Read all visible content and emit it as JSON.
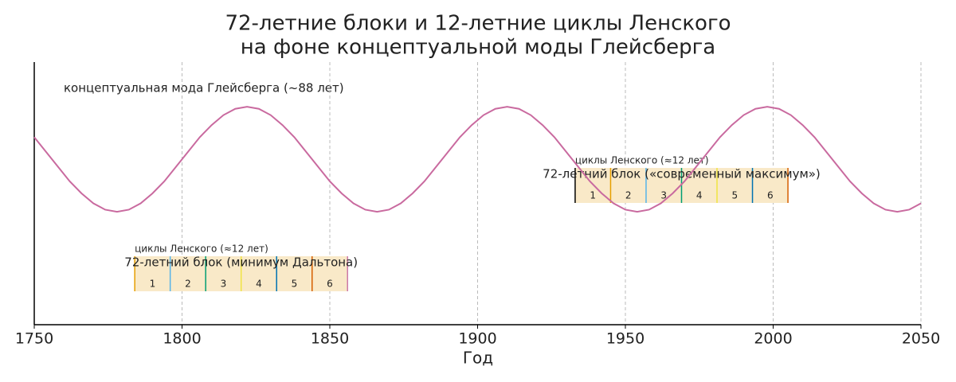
{
  "chart_data": {
    "type": "line",
    "title": "72-летние блоки и 12-летние циклы Ленского",
    "subtitle": "на фоне концептуальной моды Глейсберга",
    "x_label": "Год",
    "annotation": "концептуальная мода Глейсберга (~88 лет)",
    "xlim": [
      1750,
      2050
    ],
    "xticks": [
      1750,
      1800,
      1850,
      1900,
      1950,
      2000,
      2050
    ],
    "ylim": [
      -3.15,
      1.85
    ],
    "grid": true,
    "color": "#c96a9f",
    "x": [
      1750,
      1754,
      1758,
      1762,
      1766,
      1770,
      1774,
      1778,
      1782,
      1786,
      1790,
      1794,
      1798,
      1802,
      1806,
      1810,
      1814,
      1818,
      1822,
      1826,
      1830,
      1834,
      1838,
      1842,
      1846,
      1850,
      1854,
      1858,
      1862,
      1866,
      1870,
      1874,
      1878,
      1882,
      1886,
      1890,
      1894,
      1898,
      1902,
      1906,
      1910,
      1914,
      1918,
      1922,
      1926,
      1930,
      1934,
      1938,
      1942,
      1946,
      1950,
      1954,
      1958,
      1962,
      1966,
      1970,
      1974,
      1978,
      1982,
      1986,
      1990,
      1994,
      1998,
      2002,
      2006,
      2010,
      2014,
      2018,
      2022,
      2026,
      2030,
      2034,
      2038,
      2042,
      2046,
      2050
    ],
    "values": [
      0.42,
      0.14,
      -0.14,
      -0.42,
      -0.65,
      -0.84,
      -0.96,
      -1,
      -0.96,
      -0.84,
      -0.65,
      -0.42,
      -0.14,
      0.14,
      0.42,
      0.65,
      0.84,
      0.96,
      1,
      0.96,
      0.84,
      0.65,
      0.42,
      0.14,
      -0.14,
      -0.42,
      -0.65,
      -0.84,
      -0.96,
      -1,
      -0.96,
      -0.84,
      -0.65,
      -0.42,
      -0.14,
      0.14,
      0.42,
      0.65,
      0.84,
      0.96,
      1,
      0.96,
      0.84,
      0.65,
      0.42,
      0.14,
      -0.14,
      -0.42,
      -0.65,
      -0.84,
      -0.96,
      -1,
      -0.96,
      -0.84,
      -0.65,
      -0.42,
      -0.14,
      0.14,
      0.42,
      0.65,
      0.84,
      0.96,
      1,
      0.96,
      0.84,
      0.65,
      0.42,
      0.14,
      -0.14,
      -0.42,
      -0.65,
      -0.84,
      -0.96,
      -1,
      -0.96,
      -0.84
    ],
    "blocks": [
      {
        "label": "72-летний блок (минимум Дальтона)",
        "cycles_label": "циклы Ленского (≈12 лет)",
        "boundaries": [
          1784,
          1796,
          1808,
          1820,
          1832,
          1844,
          1856
        ],
        "boundary_colors": [
          "#e69f00",
          "#56b4e9",
          "#009e73",
          "#f0e442",
          "#0072b2",
          "#d55e00",
          "#cc79a7"
        ],
        "cycle_labels": [
          "1",
          "2",
          "3",
          "4",
          "5",
          "6"
        ],
        "fill": "#f9e9c8"
      },
      {
        "label": "72-летний блок («современный максимум»)",
        "cycles_label": "циклы Ленского (≈12 лет)",
        "boundaries": [
          1933,
          1945,
          1957,
          1969,
          1981,
          1993,
          2005
        ],
        "boundary_colors": [
          "#000000",
          "#e69f00",
          "#56b4e9",
          "#009e73",
          "#f0e442",
          "#0072b2",
          "#d55e00"
        ],
        "cycle_labels": [
          "1",
          "2",
          "3",
          "4",
          "5",
          "6"
        ],
        "fill": "#f9e9c8"
      }
    ]
  }
}
